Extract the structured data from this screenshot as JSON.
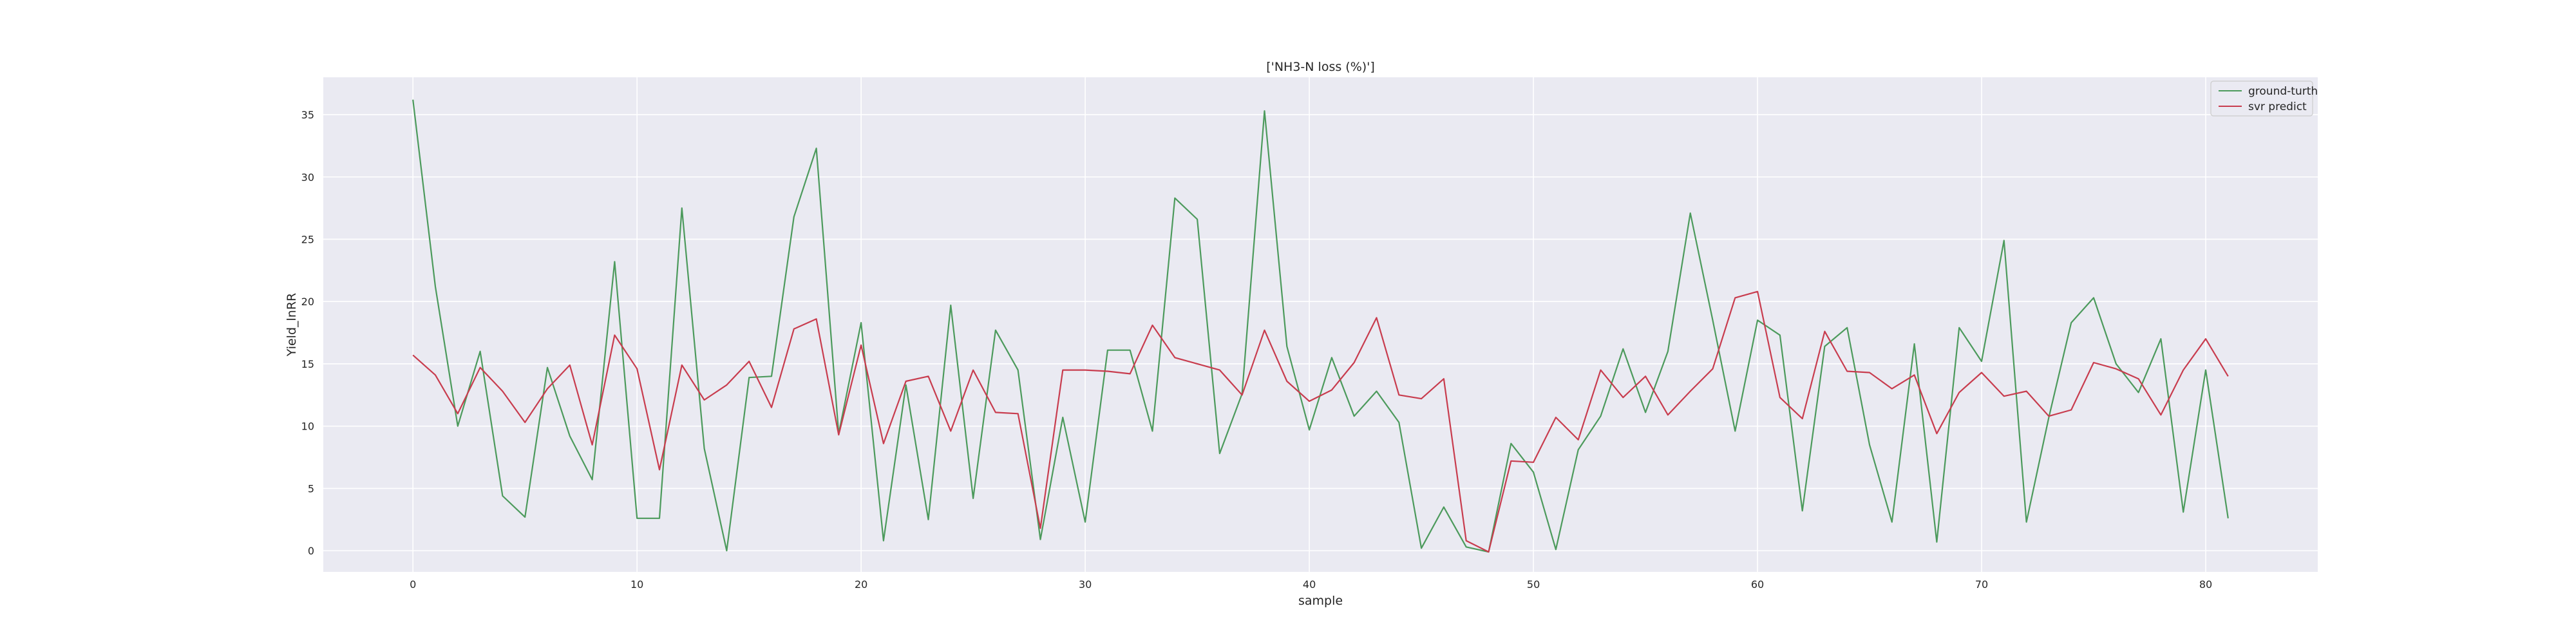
{
  "chart_data": {
    "type": "line",
    "title": "['NH3-N loss (%)']",
    "xlabel": "sample",
    "ylabel": "Yield_lnRR",
    "xlim": [
      -4,
      85
    ],
    "ylim": [
      -1.7,
      38
    ],
    "xticks": [
      0,
      10,
      20,
      30,
      40,
      50,
      60,
      70,
      80
    ],
    "yticks": [
      0,
      5,
      10,
      15,
      20,
      25,
      30,
      35
    ],
    "grid": true,
    "legend_position": "top-right",
    "background": "#eaeaf2",
    "series": [
      {
        "name": "ground-turth",
        "color": "#4c9a5c",
        "values": [
          36.2,
          21.2,
          10.0,
          16.0,
          4.4,
          2.7,
          14.7,
          9.2,
          5.7,
          23.2,
          2.6,
          2.6,
          27.5,
          8.2,
          0.0,
          13.9,
          14.0,
          26.8,
          32.3,
          9.4,
          18.3,
          0.8,
          13.3,
          2.5,
          19.7,
          4.2,
          17.7,
          14.5,
          0.9,
          10.7,
          2.3,
          16.1,
          16.1,
          9.6,
          28.3,
          26.6,
          7.8,
          12.6,
          35.3,
          16.4,
          9.7,
          15.5,
          10.8,
          12.8,
          10.3,
          0.2,
          3.5,
          0.3,
          -0.1,
          8.6,
          6.3,
          0.1,
          8.1,
          10.8,
          16.2,
          11.1,
          16.0,
          27.1,
          18.5,
          9.6,
          18.5,
          17.3,
          3.2,
          16.4,
          17.9,
          8.5,
          2.3,
          16.6,
          0.7,
          17.9,
          15.2,
          24.9,
          2.3,
          10.7,
          18.3,
          20.3,
          15.0,
          12.7,
          17.0,
          3.1,
          14.5,
          2.6
        ]
      },
      {
        "name": "svr predict",
        "color": "#c83c4e",
        "values": [
          15.7,
          14.1,
          11.0,
          14.7,
          12.8,
          10.3,
          13.0,
          14.9,
          8.5,
          17.3,
          14.6,
          6.5,
          14.9,
          12.1,
          13.3,
          15.2,
          11.5,
          17.8,
          18.6,
          9.3,
          16.5,
          8.6,
          13.6,
          14.0,
          9.6,
          14.5,
          11.1,
          11.0,
          1.8,
          14.5,
          14.5,
          14.4,
          14.2,
          18.1,
          15.5,
          15.0,
          14.5,
          12.5,
          17.7,
          13.6,
          12.0,
          12.9,
          15.1,
          18.7,
          12.5,
          12.2,
          13.8,
          0.8,
          -0.1,
          7.2,
          7.1,
          10.7,
          8.9,
          14.5,
          12.3,
          14.0,
          10.9,
          12.8,
          14.6,
          20.3,
          20.8,
          12.3,
          10.6,
          17.6,
          14.4,
          14.3,
          13.0,
          14.1,
          9.4,
          12.7,
          14.3,
          12.4,
          12.8,
          10.8,
          11.3,
          15.1,
          14.6,
          13.8,
          10.9,
          14.5,
          17.0,
          14.0
        ]
      }
    ]
  }
}
